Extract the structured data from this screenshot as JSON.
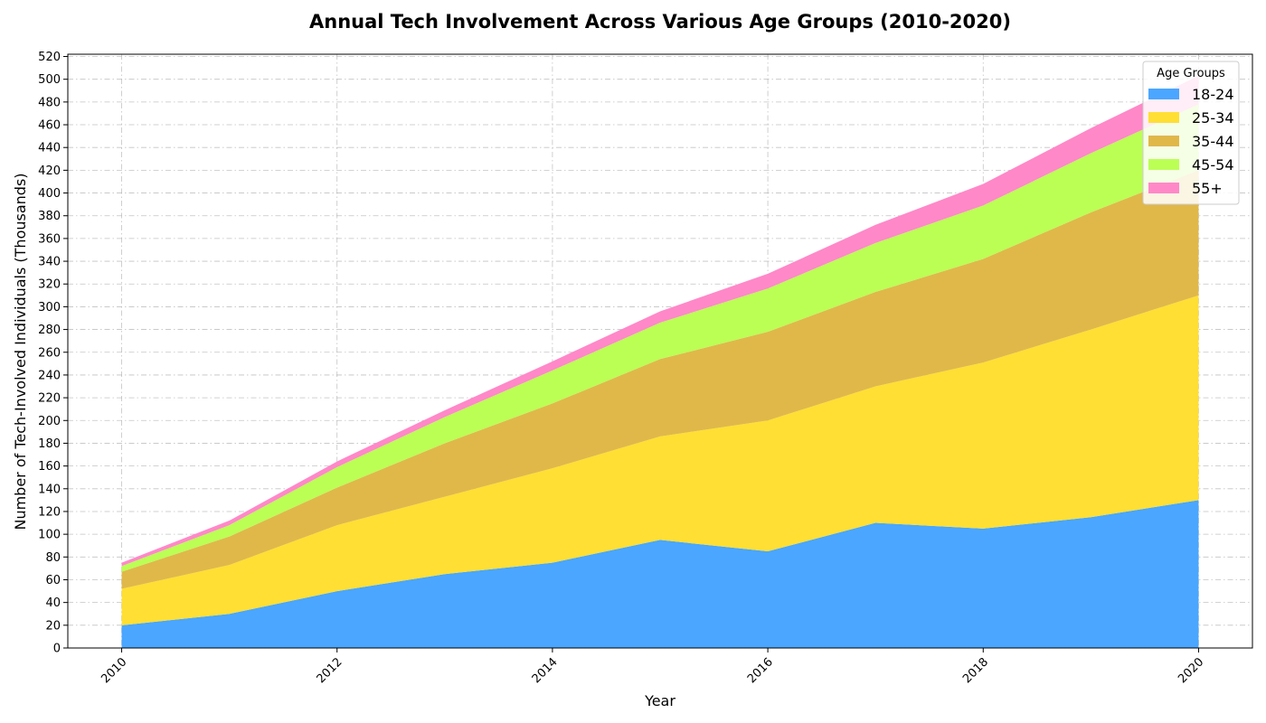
{
  "chart_data": {
    "type": "area",
    "stacked": true,
    "title": "Annual Tech Involvement Across Various Age Groups (2010-2020)",
    "xlabel": "Year",
    "ylabel": "Number of Tech-Involved Individuals (Thousands)",
    "x": [
      2010,
      2011,
      2012,
      2013,
      2014,
      2015,
      2016,
      2017,
      2018,
      2019,
      2020
    ],
    "xlim": [
      2009.5,
      2020.5
    ],
    "ylim": [
      0,
      522
    ],
    "xticks": [
      2010,
      2012,
      2014,
      2016,
      2018,
      2020
    ],
    "xtick_labels": [
      "2010",
      "2012",
      "2014",
      "2016",
      "2018",
      "2020"
    ],
    "yticks": [
      0,
      20,
      40,
      60,
      80,
      100,
      120,
      140,
      160,
      180,
      200,
      220,
      240,
      260,
      280,
      300,
      320,
      340,
      360,
      380,
      400,
      420,
      440,
      460,
      480,
      500,
      520
    ],
    "ytick_labels": [
      "0",
      "20",
      "40",
      "60",
      "80",
      "100",
      "120",
      "140",
      "160",
      "180",
      "200",
      "220",
      "240",
      "260",
      "280",
      "300",
      "320",
      "340",
      "360",
      "380",
      "400",
      "420",
      "440",
      "460",
      "480",
      "500",
      "520"
    ],
    "grid": true,
    "legend_title": "Age Groups",
    "legend_position": "top-right",
    "series": [
      {
        "name": "18-24",
        "color": "#4aa6ff",
        "values": [
          20,
          30,
          50,
          65,
          75,
          95,
          85,
          110,
          105,
          115,
          130
        ]
      },
      {
        "name": "25-34",
        "color": "#ffdf33",
        "values": [
          32,
          43,
          58,
          68,
          83,
          91,
          115,
          120,
          146,
          165,
          180
        ]
      },
      {
        "name": "35-44",
        "color": "#e0b84a",
        "values": [
          15,
          25,
          33,
          47,
          57,
          68,
          78,
          83,
          91,
          103,
          110
        ]
      },
      {
        "name": "45-54",
        "color": "#bbff55",
        "values": [
          5,
          10,
          18,
          23,
          29,
          32,
          38,
          43,
          47,
          52,
          58
        ]
      },
      {
        "name": "55+",
        "color": "#ff88c8",
        "values": [
          3,
          4,
          5,
          6,
          8,
          10,
          13,
          16,
          19,
          22,
          25
        ]
      }
    ]
  }
}
